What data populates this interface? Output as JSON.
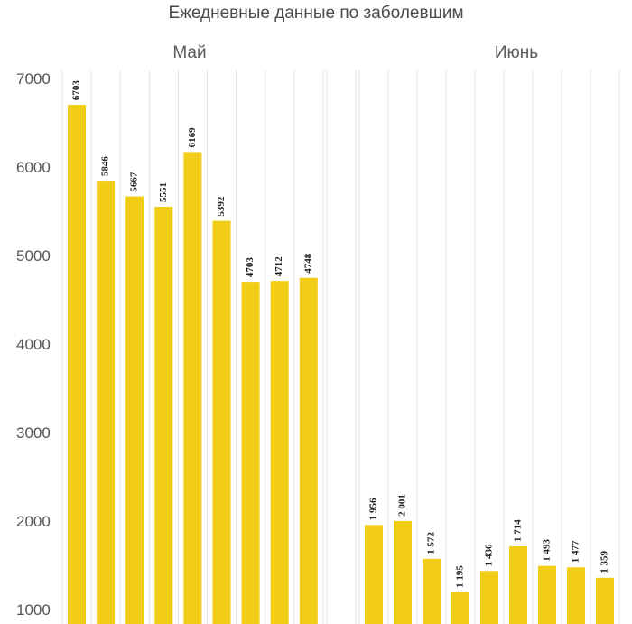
{
  "chart_data": {
    "type": "bar",
    "title": "Ежедневные данные по заболевшим",
    "xlabel": "",
    "ylabel": "",
    "ylim": [
      1000,
      7000
    ],
    "yticks": [
      "1000",
      "2000",
      "3000",
      "4000",
      "5000",
      "6000",
      "7000"
    ],
    "grid": "vertical",
    "bar_color": "#f2cd17",
    "groups": [
      {
        "label": "Май",
        "values": [
          6703,
          5846,
          5667,
          5551,
          6169,
          5392,
          4703,
          4712,
          4748
        ],
        "data_labels": [
          "6703",
          "5846",
          "5667",
          "5551",
          "6169",
          "5392",
          "4703",
          "4712",
          "4748"
        ]
      },
      {
        "label": "Июнь",
        "values": [
          1956,
          2001,
          1572,
          1195,
          1436,
          1714,
          1493,
          1477,
          1359
        ],
        "data_labels": [
          "1 956",
          "2 001",
          "1 572",
          "1 195",
          "1 436",
          "1 714",
          "1 493",
          "1 477",
          "1 359"
        ]
      }
    ]
  }
}
